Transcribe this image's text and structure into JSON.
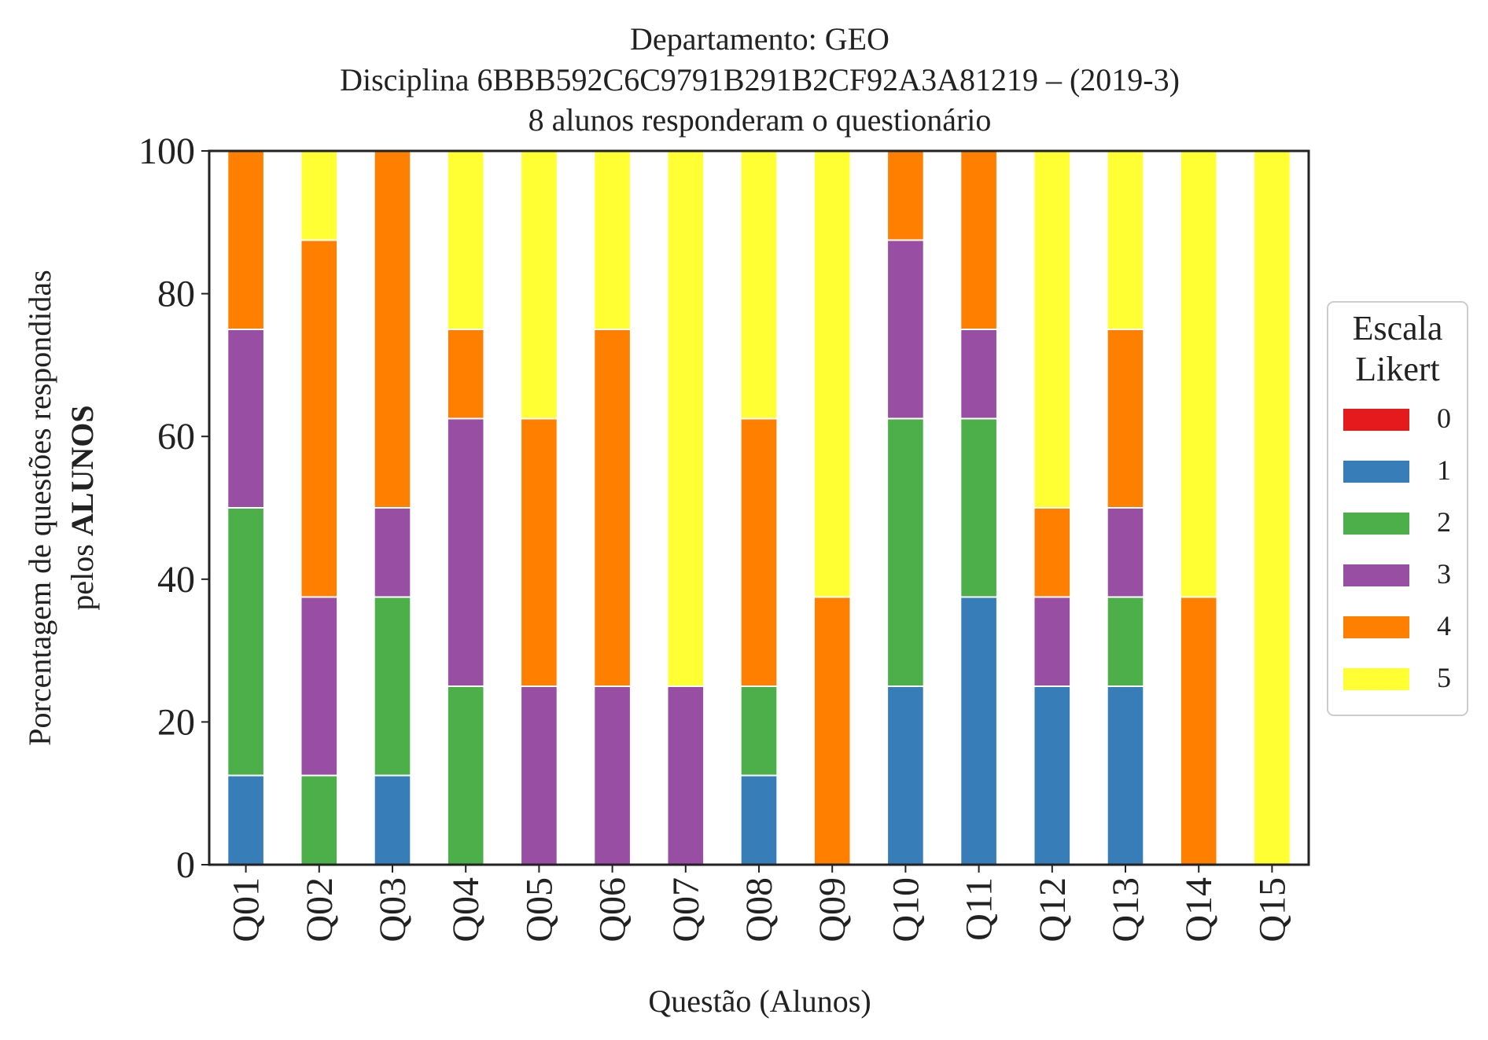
{
  "chart_data": {
    "type": "bar",
    "stacked": true,
    "title_lines": [
      "Departamento: GEO",
      "Disciplina 6BBB592C6C9791B291B2CF92A3A81219 – (2019-3)",
      "8 alunos responderam o questionário"
    ],
    "xlabel": "Questão (Alunos)",
    "ylabel_line1": "Porcentagem de questões respondidas",
    "ylabel_line2_prefix": "pelos ",
    "ylabel_line2_bold": "ALUNOS",
    "ylim": [
      0,
      100
    ],
    "yticks": [
      "0",
      "20",
      "40",
      "60",
      "80",
      "100"
    ],
    "grid": false,
    "legend": {
      "title_lines": [
        "Escala",
        "Likert"
      ],
      "placement": "right"
    },
    "categories": [
      "Q01",
      "Q02",
      "Q03",
      "Q04",
      "Q05",
      "Q06",
      "Q07",
      "Q08",
      "Q09",
      "Q10",
      "Q11",
      "Q12",
      "Q13",
      "Q14",
      "Q15"
    ],
    "series": [
      {
        "name": "0",
        "color": "#e41a1c",
        "values": [
          0,
          0,
          0,
          0,
          0,
          0,
          0,
          0,
          0,
          0,
          0,
          0,
          0,
          0,
          0
        ]
      },
      {
        "name": "1",
        "color": "#377eb8",
        "values": [
          12.5,
          0,
          12.5,
          0,
          0,
          0,
          0,
          12.5,
          0,
          25,
          37.5,
          25,
          25,
          0,
          0
        ]
      },
      {
        "name": "2",
        "color": "#4daf4a",
        "values": [
          37.5,
          12.5,
          25,
          25,
          0,
          0,
          0,
          12.5,
          0,
          37.5,
          25,
          0,
          12.5,
          0,
          0
        ]
      },
      {
        "name": "3",
        "color": "#984ea3",
        "values": [
          25,
          25,
          12.5,
          37.5,
          25,
          25,
          25,
          0,
          0,
          25,
          12.5,
          12.5,
          12.5,
          0,
          0
        ]
      },
      {
        "name": "4",
        "color": "#ff7f00",
        "values": [
          25,
          50,
          50,
          12.5,
          37.5,
          50,
          0,
          37.5,
          37.5,
          12.5,
          25,
          12.5,
          25,
          37.5,
          0
        ]
      },
      {
        "name": "5",
        "color": "#ffff33",
        "values": [
          0,
          12.5,
          0,
          25,
          37.5,
          25,
          75,
          37.5,
          62.5,
          0,
          0,
          50,
          25,
          62.5,
          100
        ]
      }
    ]
  }
}
